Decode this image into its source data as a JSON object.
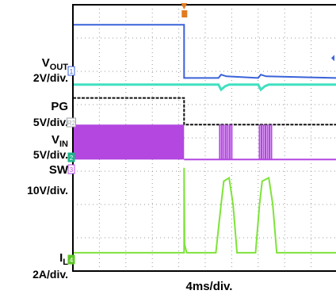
{
  "chart_data": {
    "type": "line",
    "title": "",
    "xlabel": "4ms/div.",
    "grid": true,
    "xlim": [
      0,
      10
    ],
    "ylim": [
      0,
      8
    ],
    "channels": [
      {
        "id": "1",
        "label": "V",
        "sub": "OUT",
        "scale": "2V/div.",
        "color": "#3a63d8",
        "marker_color": "#3a63d8"
      },
      {
        "id": "R2",
        "label": "PG",
        "sub": "",
        "scale": "5V/div.",
        "color": "#111111",
        "marker_color": "#9aa0a6"
      },
      {
        "id": "2",
        "label": "V",
        "sub": "IN",
        "scale": "5V/div.",
        "color": "#40e0c0",
        "marker_color": "#1fb38a"
      },
      {
        "id": "3",
        "label": "SW",
        "sub": "",
        "scale": "10V/div.",
        "color": "#b347e0",
        "marker_color": "#b347e0"
      },
      {
        "id": "4",
        "label": "I",
        "sub": "L",
        "scale": "2A/div.",
        "color": "#7ee33a",
        "marker_color": "#5fc72a"
      }
    ],
    "series": [
      {
        "name": "VOUT",
        "color": "#3a63d8",
        "x": [
          0,
          4.2,
          4.2,
          5.5,
          5.6,
          5.8,
          7.0,
          7.1,
          7.3,
          10
        ],
        "y": [
          7.4,
          7.4,
          5.8,
          5.8,
          5.9,
          5.85,
          5.8,
          5.9,
          5.85,
          5.8
        ]
      },
      {
        "name": "PG",
        "color": "#111111",
        "x": [
          0,
          4.2,
          4.2,
          10
        ],
        "y": [
          5.2,
          5.2,
          4.4,
          4.4
        ]
      },
      {
        "name": "VIN",
        "color": "#40e0c0",
        "x": [
          0,
          5.5,
          5.6,
          5.75,
          5.9,
          7.0,
          7.1,
          7.25,
          7.4,
          10
        ],
        "y": [
          5.6,
          5.6,
          5.45,
          5.55,
          5.6,
          5.6,
          5.45,
          5.55,
          5.6,
          5.6
        ]
      },
      {
        "name": "SW",
        "color": "#b347e0",
        "bursts": [
          [
            0,
            4.2
          ],
          [
            5.55,
            6.0
          ],
          [
            7.05,
            7.5
          ]
        ],
        "high": 4.4,
        "low": 3.35
      },
      {
        "name": "IL",
        "color": "#7ee33a",
        "x": [
          0,
          4.2,
          4.2,
          4.22,
          4.3,
          5.4,
          5.6,
          5.7,
          5.9,
          6.05,
          6.2,
          6.9,
          7.05,
          7.15,
          7.4,
          7.55,
          7.7,
          10
        ],
        "y": [
          0.55,
          0.55,
          3.1,
          0.8,
          0.55,
          0.55,
          2.0,
          2.7,
          2.8,
          2.0,
          0.55,
          0.55,
          2.0,
          2.7,
          2.8,
          2.0,
          0.55,
          0.55
        ]
      }
    ]
  }
}
